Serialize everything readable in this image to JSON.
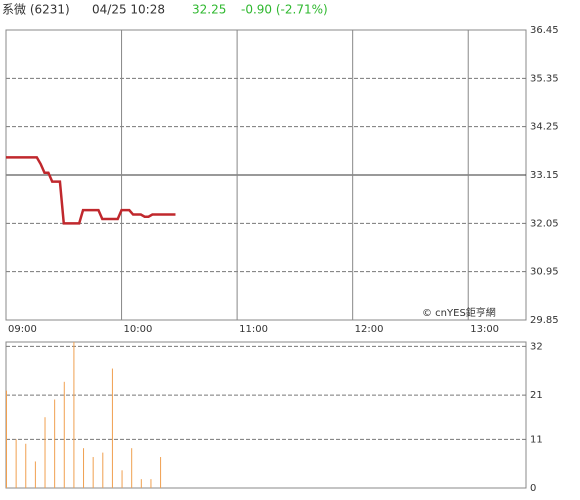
{
  "header": {
    "name": "系微 (6231)",
    "datetime": "04/25 10:28",
    "price": 32.25,
    "change": "-0.90 (-2.71%)"
  },
  "chart_data": [
    {
      "type": "line",
      "source": "© cnYES鉅亨網",
      "color": "#c0282d",
      "x": [
        0,
        2,
        4,
        6,
        8,
        10,
        12,
        14,
        16,
        18,
        20,
        22,
        24,
        26,
        28,
        30,
        32,
        34,
        36,
        38,
        40,
        42,
        44,
        46,
        48,
        50,
        52,
        54,
        56,
        58,
        60,
        62,
        64,
        66,
        68,
        70,
        72,
        74,
        76,
        78,
        80,
        82,
        84,
        86,
        88
      ],
      "values": [
        33.55,
        33.55,
        33.55,
        33.55,
        33.55,
        33.55,
        33.55,
        33.55,
        33.55,
        33.4,
        33.2,
        33.2,
        33.0,
        33.0,
        33.0,
        32.05,
        32.05,
        32.05,
        32.05,
        32.05,
        32.35,
        32.35,
        32.35,
        32.35,
        32.35,
        32.15,
        32.15,
        32.15,
        32.15,
        32.15,
        32.35,
        32.35,
        32.35,
        32.25,
        32.25,
        32.25,
        32.2,
        32.2,
        32.25,
        32.25,
        32.25,
        32.25,
        32.25,
        32.25,
        32.25
      ],
      "xlim": [
        0,
        270
      ],
      "xticks": [
        {
          "value": 0,
          "label": "09:00"
        },
        {
          "value": 60,
          "label": "10:00"
        },
        {
          "value": 120,
          "label": "11:00"
        },
        {
          "value": 180,
          "label": "12:00"
        },
        {
          "value": 240,
          "label": "13:00"
        }
      ],
      "ylim": [
        29.85,
        36.45
      ],
      "yticks": [
        29.85,
        30.95,
        32.05,
        33.15,
        34.25,
        35.35,
        36.45
      ],
      "baseline": 33.15,
      "grid": true
    },
    {
      "type": "bar",
      "color": "#f0a050",
      "x": [
        0,
        5,
        10,
        15,
        20,
        25,
        30,
        35,
        40,
        45,
        50,
        55,
        60,
        65,
        70,
        75,
        80
      ],
      "values": [
        22,
        11,
        10,
        6,
        16,
        20,
        24,
        33,
        9,
        7,
        8,
        27,
        4,
        9,
        2,
        2,
        7
      ],
      "xlim": [
        0,
        270
      ],
      "ylim": [
        0,
        33
      ],
      "yticks": [
        0,
        11,
        21,
        32
      ],
      "grid": true
    }
  ]
}
